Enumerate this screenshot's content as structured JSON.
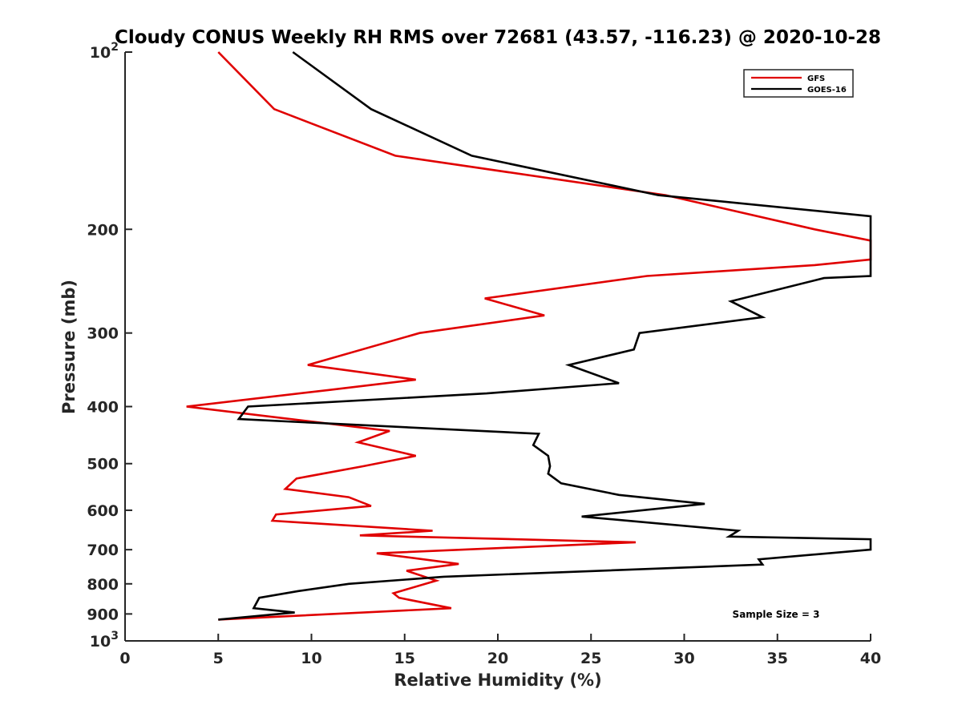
{
  "chart_data": {
    "type": "line",
    "title": "Cloudy CONUS Weekly RH RMS over 72681 (43.57, -116.23) @ 2020-10-28",
    "xlabel": "Relative Humidity (%)",
    "ylabel": "Pressure (mb)",
    "xlim": [
      0,
      40
    ],
    "ylim": [
      100,
      1000
    ],
    "y_scale": "log",
    "y_reversed": true,
    "grid": false,
    "legend_position": "top-right",
    "annotation": "Sample Size = 3",
    "x_ticks": [
      "0",
      "5",
      "10",
      "15",
      "20",
      "25",
      "30",
      "35",
      "40"
    ],
    "y_ticks": [
      {
        "value": 100,
        "base": "10",
        "exp": "2"
      },
      {
        "value": 200,
        "label": "200"
      },
      {
        "value": 300,
        "label": "300"
      },
      {
        "value": 400,
        "label": "400"
      },
      {
        "value": 500,
        "label": "500"
      },
      {
        "value": 600,
        "label": "600"
      },
      {
        "value": 700,
        "label": "700"
      },
      {
        "value": 800,
        "label": "800"
      },
      {
        "value": 900,
        "label": "900"
      },
      {
        "value": 1000,
        "base": "10",
        "exp": "3"
      }
    ],
    "series": [
      {
        "name": "GFS",
        "color": "#e00000",
        "points": [
          [
            5,
            100
          ],
          [
            8,
            125
          ],
          [
            14.5,
            150
          ],
          [
            29,
            175
          ],
          [
            37,
            200
          ],
          [
            40,
            209
          ],
          [
            40,
            225
          ],
          [
            37,
            230
          ],
          [
            28,
            240
          ],
          [
            19.3,
            262
          ],
          [
            22.5,
            280
          ],
          [
            15.8,
            300
          ],
          [
            9.8,
            340
          ],
          [
            15.6,
            360
          ],
          [
            10.9,
            375
          ],
          [
            3.3,
            400
          ],
          [
            14.2,
            440
          ],
          [
            12.5,
            460
          ],
          [
            15.6,
            485
          ],
          [
            12.8,
            505
          ],
          [
            9.2,
            530
          ],
          [
            8.6,
            552
          ],
          [
            12,
            570
          ],
          [
            13.2,
            590
          ],
          [
            8.1,
            610
          ],
          [
            7.9,
            625
          ],
          [
            16.5,
            650
          ],
          [
            12.6,
            662
          ],
          [
            27.4,
            680
          ],
          [
            13.5,
            710
          ],
          [
            17.9,
            740
          ],
          [
            15.1,
            760
          ],
          [
            16.7,
            790
          ],
          [
            14.4,
            830
          ],
          [
            14.7,
            845
          ],
          [
            17.5,
            880
          ],
          [
            5,
            920
          ]
        ]
      },
      {
        "name": "GOES-16",
        "color": "#000000",
        "points": [
          [
            9,
            100
          ],
          [
            13.2,
            125
          ],
          [
            18.6,
            150
          ],
          [
            28.6,
            175
          ],
          [
            40,
            190
          ],
          [
            40,
            240
          ],
          [
            37.5,
            242
          ],
          [
            32.5,
            265
          ],
          [
            34.2,
            282
          ],
          [
            27.6,
            300
          ],
          [
            27.3,
            320
          ],
          [
            23.8,
            340
          ],
          [
            26.5,
            365
          ],
          [
            19.4,
            380
          ],
          [
            6.6,
            400
          ],
          [
            6.1,
            420
          ],
          [
            22.2,
            445
          ],
          [
            21.9,
            465
          ],
          [
            22.7,
            485
          ],
          [
            22.8,
            505
          ],
          [
            22.7,
            520
          ],
          [
            23.4,
            540
          ],
          [
            26.5,
            565
          ],
          [
            31.1,
            585
          ],
          [
            24.5,
            615
          ],
          [
            32.9,
            650
          ],
          [
            32.4,
            665
          ],
          [
            40,
            672
          ],
          [
            40,
            700
          ],
          [
            34,
            727
          ],
          [
            34.2,
            742
          ],
          [
            17.1,
            778
          ],
          [
            12,
            800
          ],
          [
            9.3,
            823
          ],
          [
            7.2,
            845
          ],
          [
            6.9,
            880
          ],
          [
            9.1,
            895
          ],
          [
            5,
            920
          ]
        ]
      }
    ]
  }
}
